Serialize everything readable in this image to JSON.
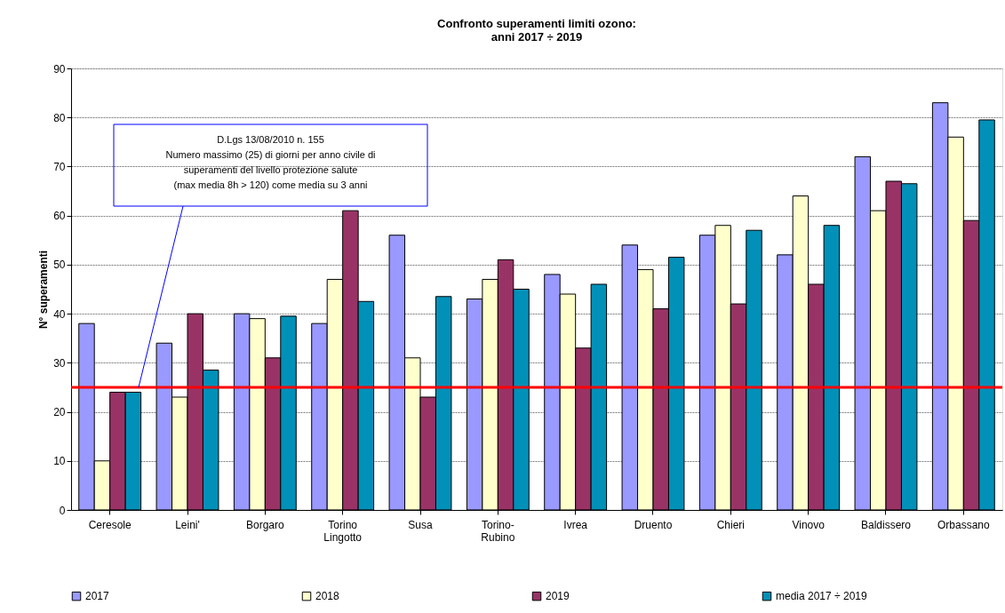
{
  "chart_data": {
    "type": "bar",
    "title": "Confronto superamenti limiti ozono:\nanni 2017 ÷ 2019",
    "ylabel": "N° superamenti",
    "categories": [
      "Ceresole",
      "Leini'",
      "Borgaro",
      "Torino Lingotto",
      "Susa",
      "Torino-Rubino",
      "Ivrea",
      "Druento",
      "Chieri",
      "Vinovo",
      "Baldissero",
      "Orbassano"
    ],
    "series": [
      {
        "name": "2017",
        "color": "#9999ff",
        "values": [
          38,
          34,
          40,
          38,
          56,
          43,
          48,
          54,
          56,
          52,
          72,
          83
        ]
      },
      {
        "name": "2018",
        "color": "#ffffcc",
        "values": [
          10,
          23,
          39,
          47,
          31,
          47,
          44,
          49,
          58,
          64,
          61,
          76
        ]
      },
      {
        "name": "2019",
        "color": "#993366",
        "values": [
          24,
          40,
          31,
          61,
          23,
          51,
          33,
          41,
          42,
          46,
          67,
          59
        ]
      },
      {
        "name": "media  2017 ÷ 2019",
        "color": "#0090b8",
        "values": [
          24,
          28.5,
          39.5,
          42.5,
          43.5,
          45,
          46,
          51.5,
          57,
          58,
          66.5,
          79.5
        ]
      }
    ],
    "ylim": [
      0,
      90
    ],
    "yticks": [
      0,
      10,
      20,
      30,
      40,
      50,
      60,
      70,
      80,
      90
    ],
    "grid": "y",
    "legend": "bottom",
    "ref_lines": [
      {
        "axis": "y",
        "value": 25,
        "color": "#ff0000",
        "line_style": "solid"
      }
    ],
    "annotations": [
      "D.Lgs 13/08/2010 n. 155\nNumero massimo (25) di giorni per anno civile di\nsuperamenti del livello protezione salute\n(max media 8h > 120)  come media su 3 anni"
    ]
  }
}
